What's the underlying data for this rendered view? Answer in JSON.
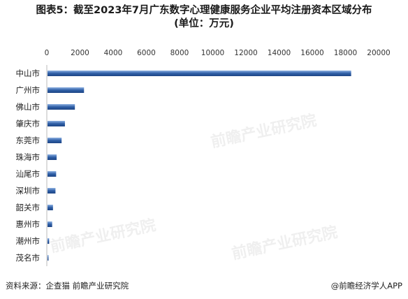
{
  "title": {
    "line1": "图表5：截至2023年7月广东数字心理健康服务企业平均注册资本区域分布",
    "line2": "(单位：万元)"
  },
  "chart_data": {
    "type": "bar",
    "orientation": "horizontal",
    "categories": [
      "中山市",
      "广州市",
      "佛山市",
      "肇庆市",
      "东莞市",
      "珠海市",
      "汕尾市",
      "深圳市",
      "韶关市",
      "惠州市",
      "潮州市",
      "茂名市"
    ],
    "values": [
      18300,
      2200,
      1650,
      1050,
      850,
      550,
      520,
      480,
      330,
      280,
      100,
      60
    ],
    "xlim": [
      0,
      20000
    ],
    "xticks": [
      0,
      2000,
      4000,
      6000,
      8000,
      10000,
      12000,
      14000,
      16000,
      18000,
      20000
    ],
    "axis_position": "top",
    "grid": false,
    "bar_color": "#2f5fa7"
  },
  "footer": {
    "source": "资料来源：企查猫 前瞻产业研究院",
    "brand": "@前瞻经济学人APP"
  },
  "watermark": "前瞻产业研究院"
}
